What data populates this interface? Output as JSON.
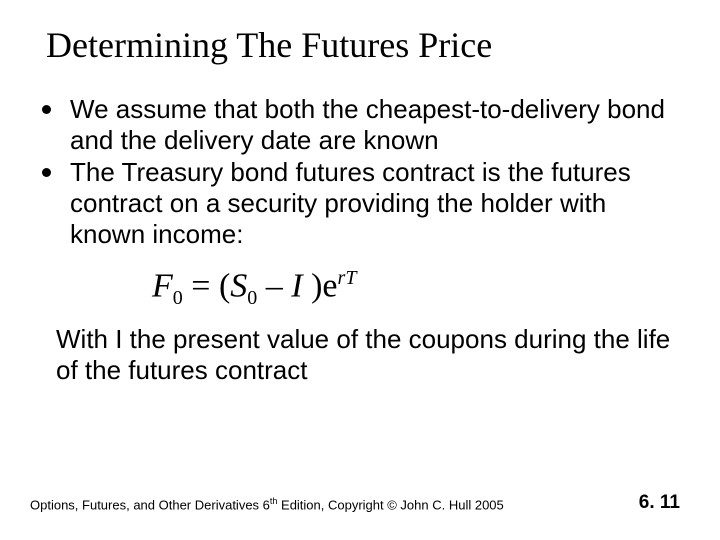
{
  "title": "Determining The Futures Price",
  "bullets": [
    "We assume that both the cheapest-to-delivery bond and the delivery date are known",
    "The Treasury bond futures contract is the futures contract on a security providing the holder with known income:"
  ],
  "formula": {
    "F": "F",
    "sub0a": "0",
    "eq": " = (",
    "S": "S",
    "sub0b": "0",
    "minus": " – ",
    "I": "I",
    "close": " )e",
    "exp": "rT"
  },
  "closing": "With I the present value of the coupons during the life of the futures contract",
  "footer": {
    "book_prefix": "Options, Futures, and Other Derivatives 6",
    "th": "th",
    "book_suffix": " Edition, Copyright © John C. Hull 2005",
    "page": "6. 11"
  },
  "colors": {
    "text": "#000000",
    "bg": "#ffffff"
  }
}
